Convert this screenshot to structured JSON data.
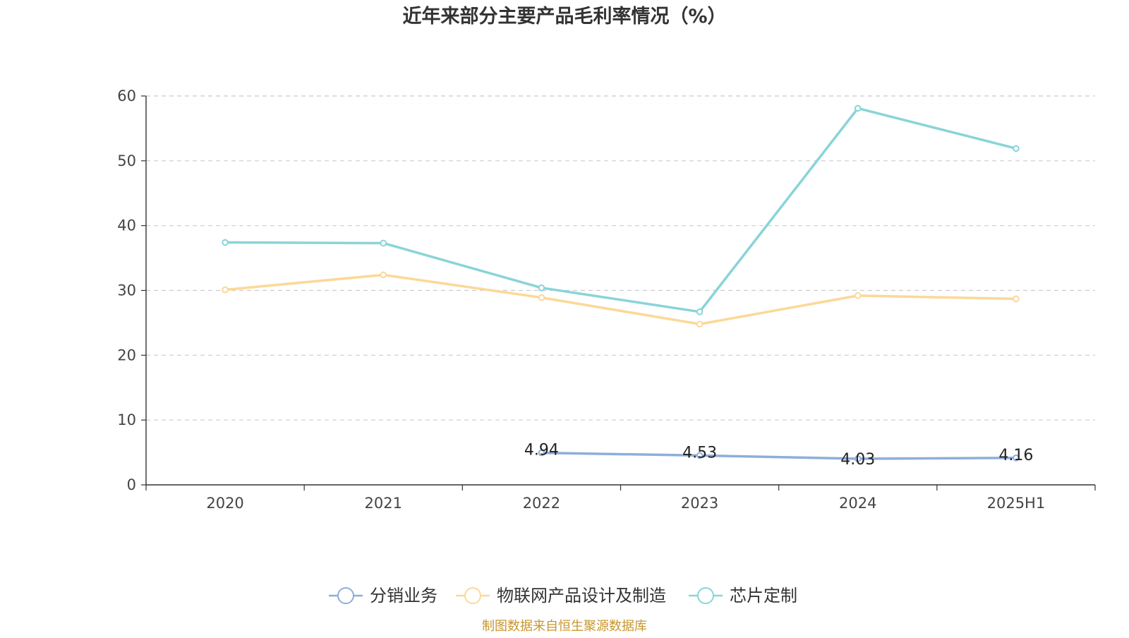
{
  "chart_data": {
    "type": "line",
    "title": "近年来部分主要产品毛利率情况（%）",
    "categories": [
      "2020",
      "2021",
      "2022",
      "2023",
      "2024",
      "2025H1"
    ],
    "ylim": [
      0,
      60
    ],
    "yticks": [
      0,
      10,
      20,
      30,
      40,
      50,
      60
    ],
    "grid": true,
    "legend_position": "bottom-center",
    "series": [
      {
        "name": "分销业务",
        "color": "#8eaedb",
        "values": [
          null,
          null,
          4.94,
          4.53,
          4.03,
          4.16
        ],
        "labels": [
          "",
          "",
          "4.94",
          "4.53",
          "4.03",
          "4.16"
        ]
      },
      {
        "name": "物联网产品设计及制造",
        "color": "#fcd898",
        "values": [
          30.1,
          32.4,
          28.9,
          24.8,
          29.2,
          28.7
        ]
      },
      {
        "name": "芯片定制",
        "color": "#89d4d8",
        "values": [
          37.4,
          37.3,
          30.4,
          26.7,
          58.1,
          51.9
        ]
      }
    ],
    "footer": "制图数据来自恒生聚源数据库"
  }
}
